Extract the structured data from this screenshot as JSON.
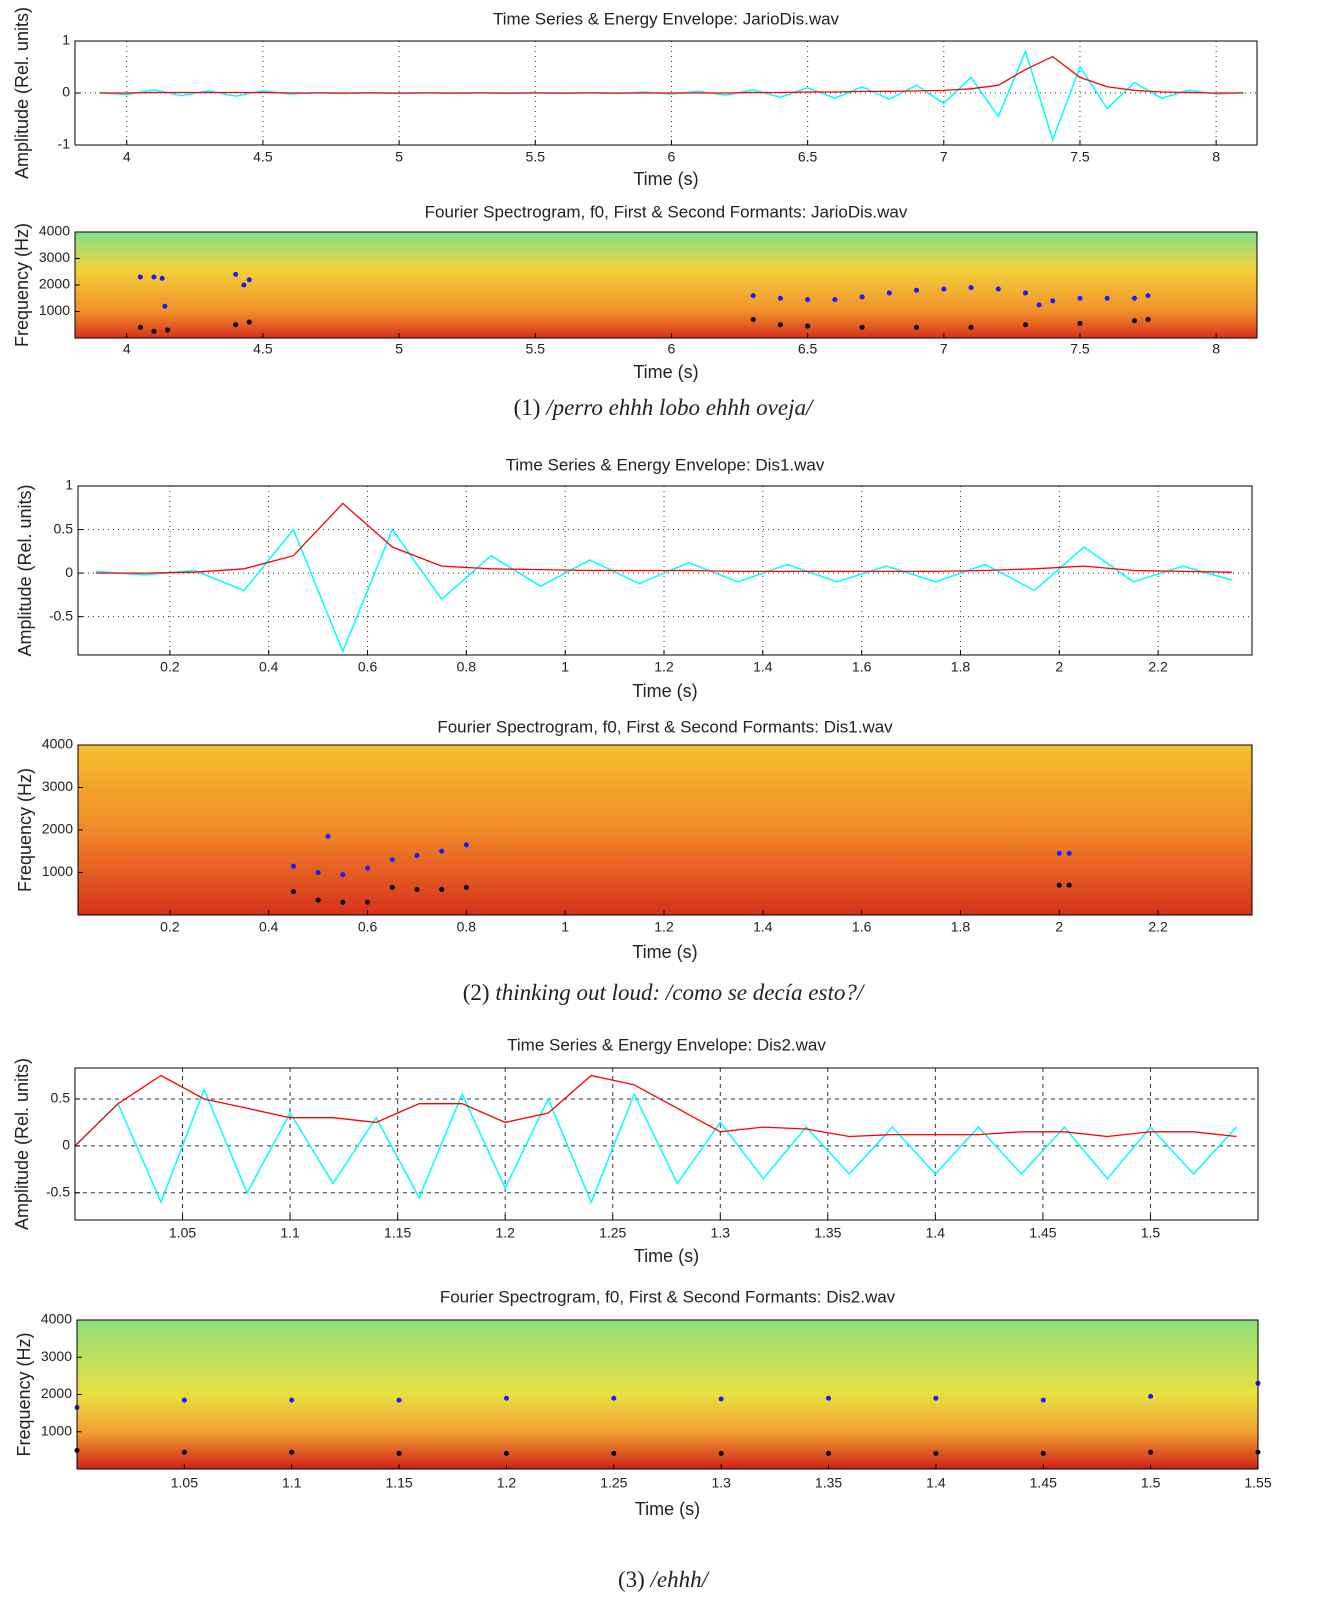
{
  "chart_data": [
    {
      "type": "line",
      "title": "Time Series & Energy Envelope: JarioDis.wav",
      "xlabel": "Time (s)",
      "ylabel": "Amplitude (Rel. units)",
      "x": [
        3.9,
        4.0,
        4.1,
        4.2,
        4.3,
        4.4,
        4.5,
        4.6,
        4.7,
        4.8,
        4.9,
        5.0,
        5.1,
        5.2,
        5.3,
        5.4,
        5.5,
        5.6,
        5.7,
        5.8,
        5.9,
        6.0,
        6.1,
        6.2,
        6.3,
        6.4,
        6.5,
        6.6,
        6.7,
        6.8,
        6.9,
        7.0,
        7.1,
        7.2,
        7.3,
        7.4,
        7.5,
        7.6,
        7.7,
        7.8,
        7.9,
        8.0,
        8.1
      ],
      "series": [
        {
          "color": "#00ffff",
          "values": [
            0.01,
            -0.03,
            0.06,
            -0.05,
            0.04,
            -0.06,
            0.04,
            -0.02,
            0.01,
            -0.01,
            0.01,
            -0.01,
            0.01,
            -0.01,
            0.01,
            -0.01,
            0.01,
            -0.01,
            0.01,
            -0.01,
            0.02,
            -0.02,
            0.03,
            -0.04,
            0.06,
            -0.08,
            0.1,
            -0.1,
            0.12,
            -0.12,
            0.15,
            -0.2,
            0.3,
            -0.45,
            0.8,
            -0.9,
            0.5,
            -0.3,
            0.2,
            -0.1,
            0.05,
            -0.02,
            0.01
          ]
        },
        {
          "color": "#ff0000",
          "values": [
            0,
            0,
            0.01,
            0.01,
            0.01,
            0.01,
            0.01,
            0,
            0,
            0,
            0,
            0,
            0,
            0,
            0,
            0,
            0,
            0,
            0,
            0,
            0,
            0,
            0,
            0,
            0.01,
            0.01,
            0.02,
            0.02,
            0.03,
            0.03,
            0.04,
            0.05,
            0.08,
            0.15,
            0.45,
            0.7,
            0.3,
            0.12,
            0.05,
            0.02,
            0.01,
            0,
            0
          ]
        }
      ],
      "xlim": [
        3.81,
        8.15
      ],
      "ylim": [
        -1,
        1
      ],
      "xticks": [
        4,
        4.5,
        5,
        5.5,
        6,
        6.5,
        7,
        7.5,
        8
      ],
      "yticks": [
        -1,
        0,
        1
      ],
      "grid": true
    },
    {
      "type": "scatter",
      "title": "Fourier Spectrogram, f0, First & Second Formants: JarioDis.wav",
      "xlabel": "Time (s)",
      "ylabel": "Frequency (Hz)",
      "series": [
        {
          "color": "#1a1aff",
          "x": [
            4.05,
            4.1,
            4.13,
            4.14,
            4.4,
            4.43,
            4.45,
            6.3,
            6.4,
            6.5,
            6.6,
            6.7,
            6.8,
            6.9,
            7.0,
            7.1,
            7.2,
            7.3,
            7.35,
            7.4,
            7.5,
            7.6,
            7.7,
            7.75
          ],
          "values": [
            2300,
            2300,
            2250,
            1200,
            2400,
            2000,
            2200,
            1600,
            1500,
            1450,
            1450,
            1550,
            1700,
            1800,
            1850,
            1900,
            1850,
            1700,
            1250,
            1400,
            1500,
            1500,
            1500,
            1600
          ]
        },
        {
          "color": "#000000",
          "x": [
            4.05,
            4.1,
            4.15,
            4.4,
            4.45,
            6.3,
            6.4,
            6.5,
            6.7,
            6.9,
            7.1,
            7.3,
            7.5,
            7.7,
            7.75
          ],
          "values": [
            400,
            250,
            300,
            500,
            600,
            700,
            500,
            450,
            400,
            400,
            400,
            500,
            550,
            650,
            700
          ]
        }
      ],
      "xlim": [
        3.81,
        8.15
      ],
      "ylim": [
        0,
        4000
      ],
      "xticks": [
        4,
        4.5,
        5,
        5.5,
        6,
        6.5,
        7,
        7.5,
        8
      ],
      "yticks": [
        1000,
        2000,
        3000,
        4000
      ]
    },
    {
      "type": "line",
      "title": "Time Series & Energy Envelope: Dis1.wav",
      "xlabel": "Time (s)",
      "ylabel": "Amplitude (Rel. units)",
      "x": [
        0.05,
        0.15,
        0.25,
        0.35,
        0.45,
        0.55,
        0.65,
        0.75,
        0.85,
        0.95,
        1.05,
        1.15,
        1.25,
        1.35,
        1.45,
        1.55,
        1.65,
        1.75,
        1.85,
        1.95,
        2.05,
        2.15,
        2.25,
        2.35
      ],
      "series": [
        {
          "color": "#00ffff",
          "values": [
            0.02,
            -0.02,
            0.03,
            -0.2,
            0.5,
            -0.9,
            0.5,
            -0.3,
            0.2,
            -0.15,
            0.15,
            -0.12,
            0.12,
            -0.1,
            0.1,
            -0.1,
            0.08,
            -0.1,
            0.1,
            -0.2,
            0.3,
            -0.1,
            0.08,
            -0.08
          ]
        },
        {
          "color": "#ff0000",
          "values": [
            0,
            0,
            0.01,
            0.05,
            0.2,
            0.8,
            0.3,
            0.08,
            0.05,
            0.04,
            0.03,
            0.03,
            0.03,
            0.02,
            0.02,
            0.02,
            0.02,
            0.02,
            0.03,
            0.05,
            0.08,
            0.03,
            0.02,
            0.01
          ]
        }
      ],
      "xlim": [
        0.014,
        2.39
      ],
      "ylim": [
        -0.94,
        1
      ],
      "xticks": [
        0.2,
        0.4,
        0.6,
        0.8,
        1,
        1.2,
        1.4,
        1.6,
        1.8,
        2,
        2.2
      ],
      "yticks": [
        -0.5,
        0,
        0.5,
        1
      ],
      "grid": true
    },
    {
      "type": "scatter",
      "title": "Fourier Spectrogram, f0, First & Second Formants: Dis1.wav",
      "xlabel": "Time (s)",
      "ylabel": "Frequency (Hz)",
      "series": [
        {
          "color": "#1a1aff",
          "x": [
            0.45,
            0.5,
            0.52,
            0.55,
            0.6,
            0.65,
            0.7,
            0.75,
            0.8,
            2.0,
            2.02
          ],
          "values": [
            1150,
            1000,
            1850,
            950,
            1100,
            1300,
            1400,
            1500,
            1650,
            1450,
            1450
          ]
        },
        {
          "color": "#000000",
          "x": [
            0.45,
            0.5,
            0.55,
            0.6,
            0.65,
            0.7,
            0.75,
            0.8,
            2.0,
            2.02
          ],
          "values": [
            550,
            350,
            300,
            300,
            650,
            600,
            600,
            650,
            700,
            700
          ]
        }
      ],
      "xlim": [
        0.014,
        2.39
      ],
      "ylim": [
        0,
        4000
      ],
      "xticks": [
        0.2,
        0.4,
        0.6,
        0.8,
        1,
        1.2,
        1.4,
        1.6,
        1.8,
        2,
        2.2
      ],
      "yticks": [
        1000,
        2000,
        3000,
        4000
      ]
    },
    {
      "type": "line",
      "title": "Time Series & Energy Envelope: Dis2.wav",
      "xlabel": "Time (s)",
      "ylabel": "Amplitude (Rel. units)",
      "x": [
        1.0,
        1.02,
        1.04,
        1.06,
        1.08,
        1.1,
        1.12,
        1.14,
        1.16,
        1.18,
        1.2,
        1.22,
        1.24,
        1.26,
        1.28,
        1.3,
        1.32,
        1.34,
        1.36,
        1.38,
        1.4,
        1.42,
        1.44,
        1.46,
        1.48,
        1.5,
        1.52,
        1.54
      ],
      "series": [
        {
          "color": "#00ffff",
          "values": [
            0,
            0.45,
            -0.6,
            0.6,
            -0.5,
            0.35,
            -0.4,
            0.3,
            -0.55,
            0.55,
            -0.45,
            0.5,
            -0.6,
            0.55,
            -0.4,
            0.25,
            -0.35,
            0.2,
            -0.3,
            0.2,
            -0.3,
            0.2,
            -0.3,
            0.2,
            -0.35,
            0.2,
            -0.3,
            0.2
          ]
        },
        {
          "color": "#ff0000",
          "values": [
            0,
            0.45,
            0.75,
            0.5,
            0.4,
            0.3,
            0.3,
            0.25,
            0.45,
            0.45,
            0.25,
            0.35,
            0.75,
            0.65,
            0.4,
            0.15,
            0.2,
            0.18,
            0.1,
            0.12,
            0.12,
            0.12,
            0.15,
            0.15,
            0.1,
            0.15,
            0.15,
            0.1
          ]
        }
      ],
      "xlim": [
        1.0,
        1.55
      ],
      "ylim": [
        -0.79,
        0.83
      ],
      "xticks": [
        1.05,
        1.1,
        1.15,
        1.2,
        1.25,
        1.3,
        1.35,
        1.4,
        1.45,
        1.5
      ],
      "yticks": [
        -0.5,
        0,
        0.5
      ],
      "grid": true
    },
    {
      "type": "scatter",
      "title": "Fourier Spectrogram, f0, First & Second Formants: Dis2.wav",
      "xlabel": "Time (s)",
      "ylabel": "Frequency (Hz)",
      "series": [
        {
          "color": "#1a1aff",
          "x": [
            1.0,
            1.05,
            1.1,
            1.15,
            1.2,
            1.25,
            1.3,
            1.35,
            1.4,
            1.45,
            1.5,
            1.55
          ],
          "values": [
            1650,
            1850,
            1850,
            1850,
            1900,
            1900,
            1880,
            1900,
            1900,
            1850,
            1950,
            2300
          ]
        },
        {
          "color": "#000000",
          "x": [
            1.0,
            1.05,
            1.1,
            1.15,
            1.2,
            1.25,
            1.3,
            1.35,
            1.4,
            1.45,
            1.5,
            1.55
          ],
          "values": [
            500,
            450,
            450,
            420,
            420,
            420,
            420,
            420,
            420,
            420,
            450,
            450
          ]
        }
      ],
      "xlim": [
        1.0,
        1.55
      ],
      "ylim": [
        0,
        4000
      ],
      "xticks": [
        1.05,
        1.1,
        1.15,
        1.2,
        1.25,
        1.3,
        1.35,
        1.4,
        1.45,
        1.5,
        1.55
      ],
      "yticks": [
        1000,
        2000,
        3000,
        4000
      ]
    }
  ],
  "captions": [
    {
      "number": "(1)",
      "text": "/perro ehhh lobo ehhh oveja/"
    },
    {
      "number": "(2)",
      "text": "thinking out loud: /como se decía esto?/"
    },
    {
      "number": "(3)",
      "text": "/ehhh/"
    }
  ]
}
